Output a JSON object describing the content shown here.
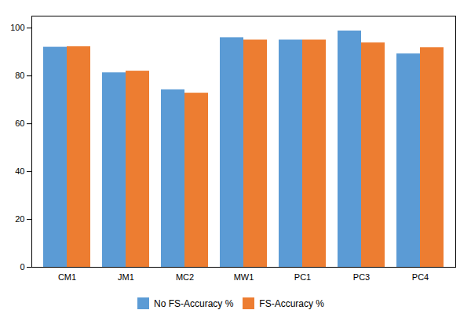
{
  "chart_data": {
    "type": "bar",
    "categories": [
      "CM1",
      "JM1",
      "MC2",
      "MW1",
      "PC1",
      "PC3",
      "PC4"
    ],
    "series": [
      {
        "name": "No FS-Accuracy %",
        "color": "#5B9BD5",
        "values": [
          92.0,
          81.3,
          74.2,
          96.0,
          95.0,
          98.8,
          89.2
        ]
      },
      {
        "name": "FS-Accuracy %",
        "color": "#ED7D31",
        "values": [
          92.2,
          82.0,
          72.8,
          95.0,
          95.0,
          93.8,
          91.8
        ]
      }
    ],
    "ylim": [
      0,
      105
    ],
    "yticks": [
      0,
      20,
      40,
      60,
      80,
      100
    ],
    "grid": false,
    "legend": "bottom"
  }
}
